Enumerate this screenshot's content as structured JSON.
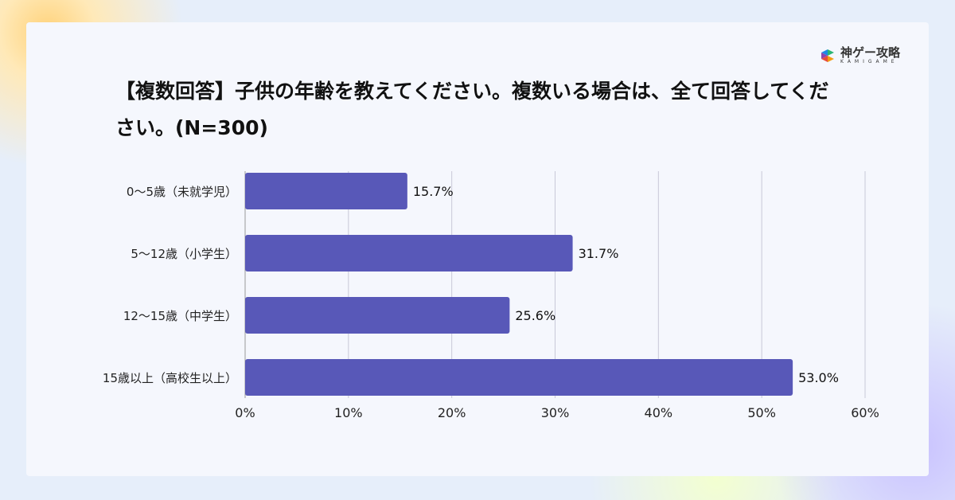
{
  "logo": {
    "name": "神ゲー攻略",
    "sub": "KAMIGAME"
  },
  "title": "【複数回答】子供の年齢を教えてください。複数いる場合は、全て回答してください。(N=300)",
  "colors": {
    "bar": "#5858b8",
    "grid": "#c8c8d8"
  },
  "chart_data": {
    "type": "bar",
    "orientation": "horizontal",
    "title": "【複数回答】子供の年齢を教えてください。複数いる場合は、全て回答してください。(N=300)",
    "categories": [
      "0〜5歳（未就学児）",
      "5〜12歳（小学生）",
      "12〜15歳（中学生）",
      "15歳以上（高校生以上）"
    ],
    "values": [
      15.7,
      31.7,
      25.6,
      53.0
    ],
    "data_labels": [
      "15.7%",
      "31.7%",
      "25.6%",
      "53.0%"
    ],
    "xlim": [
      0,
      60
    ],
    "xticks": [
      "0%",
      "10%",
      "20%",
      "30%",
      "40%",
      "50%",
      "60%"
    ],
    "grid": true,
    "legend": "none"
  }
}
